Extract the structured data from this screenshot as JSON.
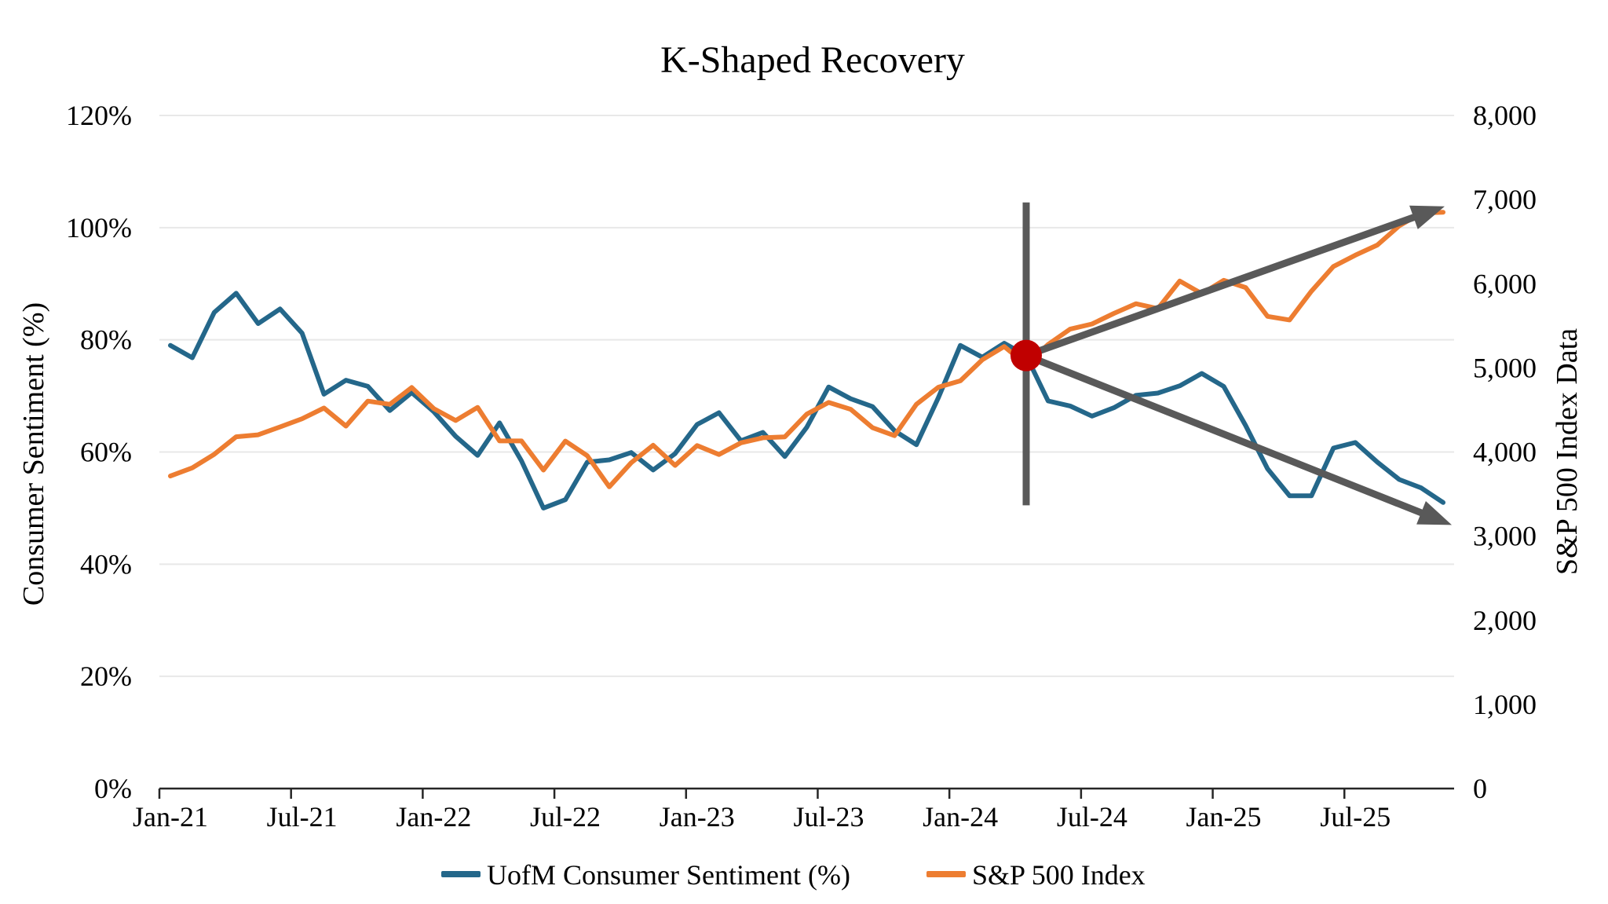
{
  "chart_data": {
    "type": "line",
    "title": "K-Shaped Recovery",
    "grid": "horizontal",
    "categories": [
      "Jan-21",
      "Feb-21",
      "Mar-21",
      "Apr-21",
      "May-21",
      "Jun-21",
      "Jul-21",
      "Aug-21",
      "Sep-21",
      "Oct-21",
      "Nov-21",
      "Dec-21",
      "Jan-22",
      "Feb-22",
      "Mar-22",
      "Apr-22",
      "May-22",
      "Jun-22",
      "Jul-22",
      "Aug-22",
      "Sep-22",
      "Oct-22",
      "Nov-22",
      "Dec-22",
      "Jan-23",
      "Feb-23",
      "Mar-23",
      "Apr-23",
      "May-23",
      "Jun-23",
      "Jul-23",
      "Aug-23",
      "Sep-23",
      "Oct-23",
      "Nov-23",
      "Dec-23",
      "Jan-24",
      "Feb-24",
      "Mar-24",
      "Apr-24",
      "May-24",
      "Jun-24",
      "Jul-24",
      "Aug-24",
      "Sep-24",
      "Oct-24",
      "Nov-24",
      "Dec-24",
      "Jan-25",
      "Feb-25",
      "Mar-25",
      "Apr-25",
      "May-25",
      "Jun-25",
      "Jul-25",
      "Aug-25",
      "Sep-25",
      "Oct-25",
      "Nov-25"
    ],
    "x_tick_labels": [
      "Jan-21",
      "Jul-21",
      "Jan-22",
      "Jul-22",
      "Jan-23",
      "Jul-23",
      "Jan-24",
      "Jul-24",
      "Jan-25",
      "Jul-25"
    ],
    "series": [
      {
        "name": "UofM Consumer Sentiment (%)",
        "axis": "left",
        "color": "#24678A",
        "values": [
          79.0,
          76.8,
          84.9,
          88.3,
          82.9,
          85.5,
          81.2,
          70.3,
          72.8,
          71.7,
          67.4,
          70.6,
          67.2,
          62.8,
          59.4,
          65.2,
          58.4,
          50.0,
          51.5,
          58.2,
          58.6,
          59.9,
          56.8,
          59.7,
          64.9,
          67.0,
          62.0,
          63.5,
          59.2,
          64.4,
          71.6,
          69.5,
          68.1,
          63.8,
          61.3,
          69.7,
          79.0,
          76.9,
          79.4,
          77.2,
          69.1,
          68.2,
          66.4,
          67.9,
          70.1,
          70.5,
          71.8,
          74.0,
          71.7,
          64.7,
          57.0,
          52.2,
          52.2,
          60.7,
          61.7,
          58.2,
          55.1,
          53.6,
          51.0
        ]
      },
      {
        "name": "S&P 500 Index",
        "axis": "right",
        "color": "#ED7D31",
        "values": [
          3714,
          3811,
          3973,
          4181,
          4204,
          4298,
          4395,
          4523,
          4308,
          4605,
          4567,
          4766,
          4516,
          4374,
          4530,
          4132,
          4132,
          3785,
          4130,
          3955,
          3586,
          3872,
          4080,
          3840,
          4077,
          3970,
          4109,
          4169,
          4180,
          4450,
          4589,
          4508,
          4288,
          4194,
          4568,
          4770,
          4846,
          5096,
          5254,
          5036,
          5278,
          5460,
          5522,
          5648,
          5762,
          5705,
          6032,
          5882,
          6041,
          5955,
          5612,
          5569,
          5912,
          6205,
          6339,
          6460,
          6688,
          6840,
          6850
        ]
      }
    ],
    "left_axis": {
      "title": "Consumer Sentiment (%)",
      "min": 0,
      "max": 120,
      "step": 20,
      "tick_labels": [
        "0%",
        "20%",
        "40%",
        "60%",
        "80%",
        "100%",
        "120%"
      ]
    },
    "right_axis": {
      "title": "S&P 500 Index Data",
      "min": 0,
      "max": 8000,
      "step": 1000,
      "tick_labels": [
        "0",
        "1,000",
        "2,000",
        "3,000",
        "4,000",
        "5,000",
        "6,000",
        "7,000",
        "8,000"
      ]
    },
    "legend": {
      "position": "bottom",
      "entries": [
        "UofM Consumer Sentiment (%)",
        "S&P 500 Index"
      ]
    },
    "annotations": {
      "color": "#595959",
      "vertical_line": {
        "category": "Apr-24",
        "index": 39,
        "from_pct": 50.5,
        "to_pct": 104.5
      },
      "marker_dot": {
        "category": "Apr-24",
        "index": 39,
        "value_pct": 77.2,
        "color": "#C00000"
      },
      "arrows": [
        {
          "name": "upper-arrow",
          "from_index": 39,
          "from_pct": 77.2,
          "to_frac_x": 0.9927,
          "to_pct": 103.8
        },
        {
          "name": "lower-arrow",
          "from_index": 39,
          "from_pct": 77.2,
          "to_frac_x": 0.9982,
          "to_pct": 47.0
        }
      ]
    },
    "colors": {
      "gridline": "#E8E8E8",
      "axis_line": "#262626",
      "text": "#000000",
      "background": "#FFFFFF"
    }
  }
}
